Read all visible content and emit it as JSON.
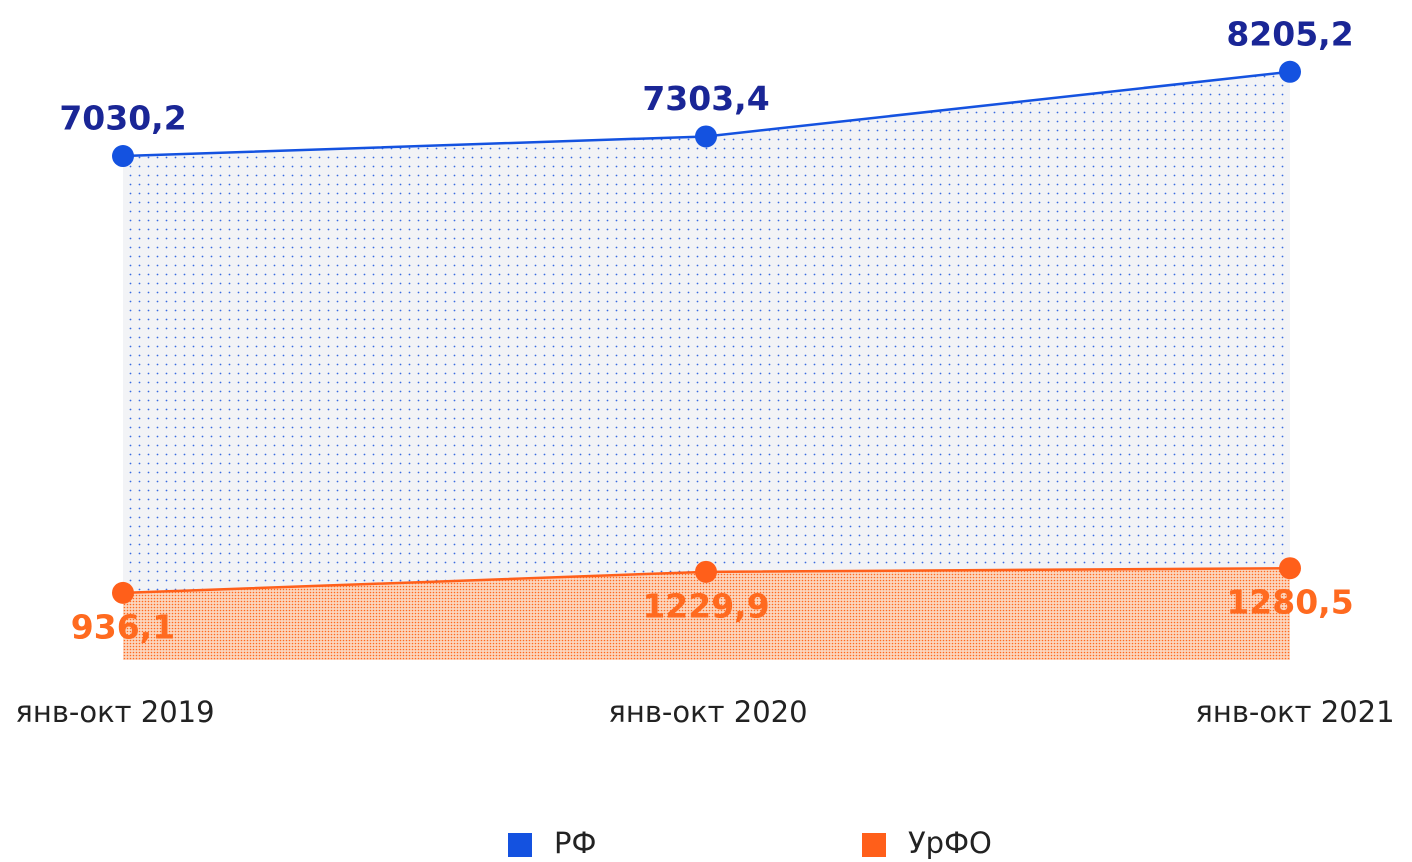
{
  "chart_data": {
    "type": "area",
    "categories": [
      "янв-окт 2019",
      "янв-окт 2020",
      "янв-окт 2021"
    ],
    "series": [
      {
        "name": "РФ",
        "color": "#1452e0",
        "label_color": "#1a2696",
        "values": [
          7030.2,
          7303.4,
          8205.2
        ],
        "value_labels": [
          "7030,2",
          "7303,4",
          "8205,2"
        ]
      },
      {
        "name": "УрФО",
        "color": "#ff5f1a",
        "label_color": "#ff6a1f",
        "values": [
          936.1,
          1229.9,
          1280.5
        ],
        "value_labels": [
          "936,1",
          "1229,9",
          "1280,5"
        ]
      }
    ],
    "ylim": [
      0,
      8300
    ]
  }
}
